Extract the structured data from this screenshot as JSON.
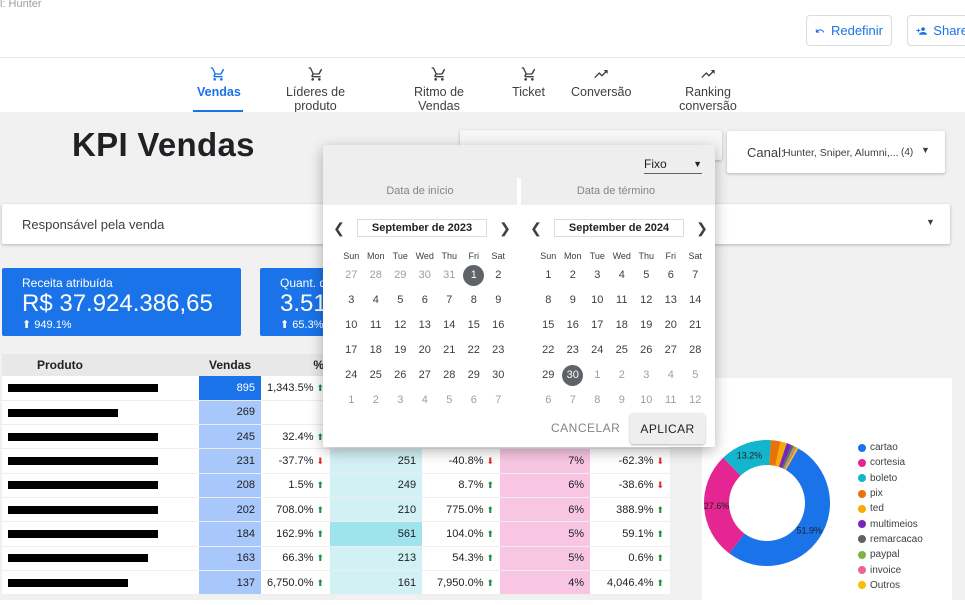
{
  "header": {
    "crumb": "l: Hunter",
    "reset_label": "Redefinir",
    "share_label": "Share"
  },
  "tabs": [
    {
      "label": "Vendas",
      "icon": "cart-icon",
      "active": true
    },
    {
      "label": "Líderes de produto",
      "icon": "cart-icon",
      "active": false
    },
    {
      "label": "Ritmo de Vendas",
      "icon": "cart-icon",
      "active": false
    },
    {
      "label": "Ticket",
      "icon": "cart-icon",
      "active": false
    },
    {
      "label": "Conversão",
      "icon": "trending-up-icon",
      "active": false
    },
    {
      "label": "Ranking conversão",
      "icon": "trending-up-icon",
      "active": false
    }
  ],
  "page_title": "KPI Vendas",
  "filters": {
    "canal_label": "Canal:",
    "canal_value": "Hunter, Sniper, Alumni,...",
    "canal_count": "(4)",
    "responsavel_label": "Responsável pela venda"
  },
  "kpis": [
    {
      "label": "Receita atribuída",
      "value": "R$ 37.924.386,65",
      "change": "949.1%"
    },
    {
      "label": "Quant. d",
      "value": "3.51",
      "change": "65.3%"
    }
  ],
  "table": {
    "headers": [
      "Produto",
      "Vendas",
      "%"
    ],
    "rows": [
      {
        "vendas": "895",
        "pct": "1,343.5%",
        "dir": "up",
        "v2": "",
        "p2": "",
        "d2": "",
        "p3": "",
        "p4": "",
        "d4": ""
      },
      {
        "vendas": "269",
        "pct": "",
        "dir": "",
        "v2": "",
        "p2": "",
        "d2": "",
        "p3": "",
        "p4": "",
        "d4": ""
      },
      {
        "vendas": "245",
        "pct": "32.4%",
        "dir": "up",
        "v2": "",
        "p2": "",
        "d2": "",
        "p3": "",
        "p4": "",
        "d4": ""
      },
      {
        "vendas": "231",
        "pct": "-37.7%",
        "dir": "down",
        "v2": "251",
        "p2": "-40.8%",
        "d2": "down",
        "p3": "7%",
        "p4": "-62.3%",
        "d4": "down"
      },
      {
        "vendas": "208",
        "pct": "1.5%",
        "dir": "up",
        "v2": "249",
        "p2": "8.7%",
        "d2": "up",
        "p3": "6%",
        "p4": "-38.6%",
        "d4": "down"
      },
      {
        "vendas": "202",
        "pct": "708.0%",
        "dir": "up",
        "v2": "210",
        "p2": "775.0%",
        "d2": "up",
        "p3": "6%",
        "p4": "388.9%",
        "d4": "up"
      },
      {
        "vendas": "184",
        "pct": "162.9%",
        "dir": "up",
        "v2": "561",
        "p2": "104.0%",
        "d2": "up",
        "p3": "5%",
        "p4": "59.1%",
        "d4": "up"
      },
      {
        "vendas": "163",
        "pct": "66.3%",
        "dir": "up",
        "v2": "213",
        "p2": "54.3%",
        "d2": "up",
        "p3": "5%",
        "p4": "0.6%",
        "d4": "up"
      },
      {
        "vendas": "137",
        "pct": "6,750.0%",
        "dir": "up",
        "v2": "161",
        "p2": "7,950.0%",
        "d2": "up",
        "p3": "4%",
        "p4": "4,046.4%",
        "d4": "up"
      }
    ]
  },
  "donut": {
    "slices": [
      {
        "name": "cartao",
        "value": 51.9,
        "color": "#1a73e8",
        "label": "51.9%"
      },
      {
        "name": "cortesia",
        "value": 27.6,
        "color": "#e52592",
        "label": "27.6%"
      },
      {
        "name": "boleto",
        "value": 13.2,
        "color": "#12b5cb",
        "label": "13.2%"
      },
      {
        "name": "pix",
        "value": 2.5,
        "color": "#e8710a",
        "label": ""
      },
      {
        "name": "ted",
        "value": 1.6,
        "color": "#f9ab00",
        "label": ""
      },
      {
        "name": "multimeios",
        "value": 1.3,
        "color": "#7627bb",
        "label": ""
      },
      {
        "name": "remarcacao",
        "value": 0.6,
        "color": "#5f6368",
        "label": ""
      },
      {
        "name": "paypal",
        "value": 0.5,
        "color": "#7cb342",
        "label": ""
      },
      {
        "name": "invoice",
        "value": 0.4,
        "color": "#f06292",
        "label": ""
      },
      {
        "name": "Outros",
        "value": 0.4,
        "color": "#fbbc04",
        "label": ""
      }
    ]
  },
  "datepicker": {
    "mode": "Fixo",
    "start_label": "Data de início",
    "end_label": "Data de término",
    "weekdays": [
      "Sun",
      "Mon",
      "Tue",
      "Wed",
      "Thu",
      "Fri",
      "Sat"
    ],
    "start_month": {
      "title": "September de 2023",
      "days": [
        "27",
        "28",
        "29",
        "30",
        "31",
        "1",
        "2",
        "3",
        "4",
        "5",
        "6",
        "7",
        "8",
        "9",
        "10",
        "11",
        "12",
        "13",
        "14",
        "15",
        "16",
        "17",
        "18",
        "19",
        "20",
        "21",
        "22",
        "23",
        "24",
        "25",
        "26",
        "27",
        "28",
        "29",
        "30",
        "1",
        "2",
        "3",
        "4",
        "5",
        "6",
        "7"
      ],
      "dim": [
        0,
        1,
        2,
        3,
        4,
        35,
        36,
        37,
        38,
        39,
        40,
        41
      ],
      "selected": 5
    },
    "end_month": {
      "title": "September de 2024",
      "days": [
        "1",
        "2",
        "3",
        "4",
        "5",
        "6",
        "7",
        "8",
        "9",
        "10",
        "11",
        "12",
        "13",
        "14",
        "15",
        "16",
        "17",
        "18",
        "19",
        "20",
        "21",
        "22",
        "23",
        "24",
        "25",
        "26",
        "27",
        "28",
        "29",
        "30",
        "1",
        "2",
        "3",
        "4",
        "5",
        "6",
        "7",
        "8",
        "9",
        "10",
        "11",
        "12"
      ],
      "dim": [
        30,
        31,
        32,
        33,
        34,
        35,
        36,
        37,
        38,
        39,
        40,
        41
      ],
      "selected": 29
    },
    "cancel_label": "CANCELAR",
    "apply_label": "APLICAR"
  }
}
